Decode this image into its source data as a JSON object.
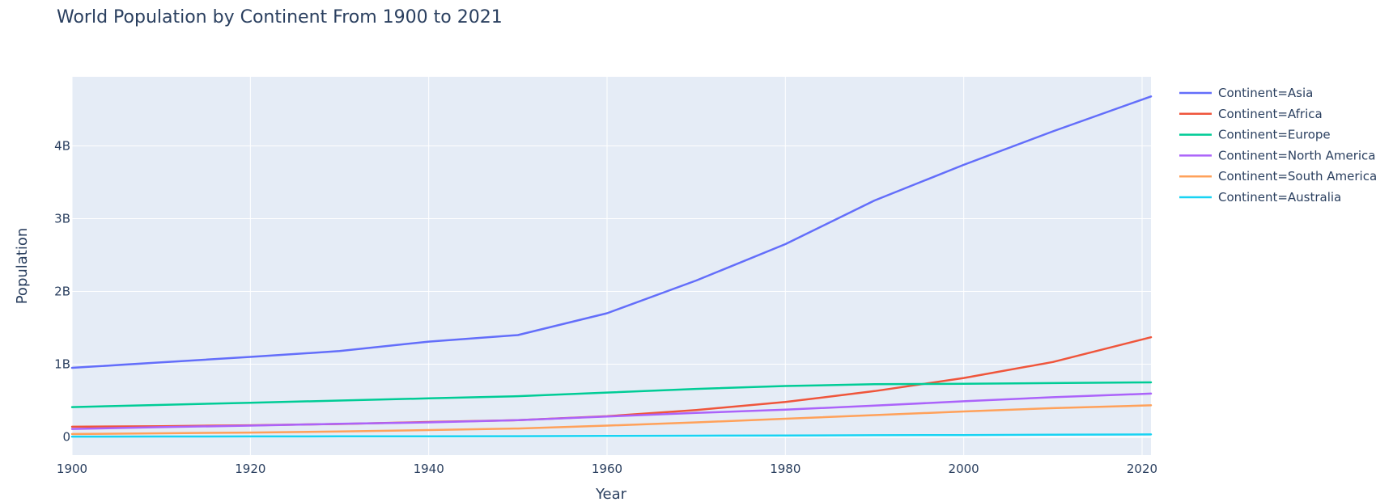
{
  "chart_data": {
    "type": "line",
    "title": "World Population by Continent From 1900 to 2021",
    "xlabel": "Year",
    "ylabel": "Population",
    "xlim": [
      1900,
      2021
    ],
    "ylim": [
      -250000000,
      4950000000
    ],
    "x_ticks": [
      1900,
      1920,
      1940,
      1960,
      1980,
      2000,
      2020
    ],
    "x_tick_labels": [
      "1900",
      "1920",
      "1940",
      "1960",
      "1980",
      "2000",
      "2020"
    ],
    "y_ticks": [
      0,
      1000000000,
      2000000000,
      3000000000,
      4000000000
    ],
    "y_tick_labels": [
      "0",
      "1B",
      "2B",
      "3B",
      "4B"
    ],
    "grid": true,
    "legend_position": "right",
    "plot_background": "#e5ecf6",
    "x": [
      1900,
      1910,
      1920,
      1930,
      1940,
      1950,
      1960,
      1970,
      1980,
      1990,
      2000,
      2010,
      2021
    ],
    "series": [
      {
        "name": "Continent=Asia",
        "color": "#636efa",
        "values": [
          950000000,
          1025000000,
          1100000000,
          1180000000,
          1310000000,
          1400000000,
          1700000000,
          2150000000,
          2650000000,
          3250000000,
          3740000000,
          4200000000,
          4680000000
        ]
      },
      {
        "name": "Continent=Africa",
        "color": "#ef553b",
        "values": [
          140000000,
          148000000,
          160000000,
          178000000,
          205000000,
          230000000,
          285000000,
          370000000,
          480000000,
          630000000,
          810000000,
          1030000000,
          1370000000
        ]
      },
      {
        "name": "Continent=Europe",
        "color": "#00cc96",
        "values": [
          410000000,
          440000000,
          470000000,
          500000000,
          530000000,
          560000000,
          610000000,
          660000000,
          700000000,
          725000000,
          730000000,
          740000000,
          750000000
        ]
      },
      {
        "name": "Continent=North America",
        "color": "#ab63fa",
        "values": [
          110000000,
          135000000,
          155000000,
          180000000,
          200000000,
          230000000,
          280000000,
          330000000,
          375000000,
          430000000,
          490000000,
          545000000,
          595000000
        ]
      },
      {
        "name": "Continent=South America",
        "color": "#ffa15a",
        "values": [
          40000000,
          50000000,
          60000000,
          75000000,
          95000000,
          115000000,
          155000000,
          200000000,
          250000000,
          300000000,
          350000000,
          395000000,
          435000000
        ]
      },
      {
        "name": "Continent=Australia",
        "color": "#19d3f3",
        "values": [
          4000000,
          5000000,
          6500000,
          7500000,
          8500000,
          10000000,
          13000000,
          17000000,
          20000000,
          23000000,
          26000000,
          30000000,
          35000000
        ]
      }
    ]
  }
}
